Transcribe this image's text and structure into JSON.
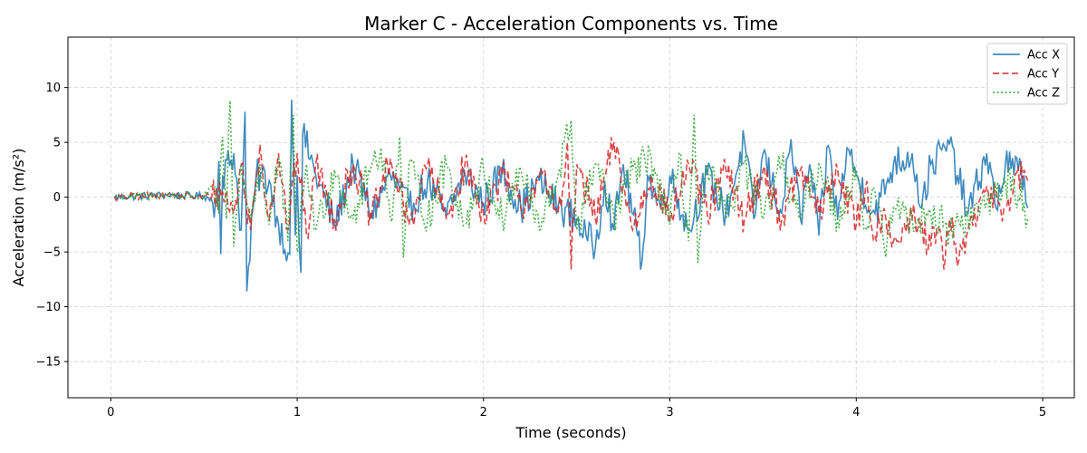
{
  "chart_data": {
    "type": "line",
    "title": "Marker C - Acceleration Components vs. Time",
    "xlabel": "Time (seconds)",
    "ylabel": "Acceleration (m/s²)",
    "xlim": [
      -0.23,
      5.17
    ],
    "ylim": [
      -18.3,
      14.6
    ],
    "xticks": [
      0,
      1,
      2,
      3,
      4,
      5
    ],
    "yticks": [
      -15,
      -10,
      -5,
      0,
      5,
      10
    ],
    "ytick_labels": [
      "−15",
      "−10",
      "−5",
      "0",
      "5",
      "10"
    ],
    "grid": true,
    "legend_position": "top-right",
    "x_start": 0.02,
    "x_end": 4.92,
    "series": [
      {
        "name": "Acc X",
        "color": "#1f77b4",
        "dash": "solid",
        "x": [
          0.02,
          0.3,
          0.5,
          0.57,
          0.58,
          0.59,
          0.6,
          0.66,
          0.7,
          0.72,
          0.73,
          0.78,
          0.85,
          0.9,
          0.96,
          0.97,
          0.98,
          0.99,
          1.0,
          1.01,
          1.02,
          1.03,
          1.1,
          1.2,
          1.3,
          1.4,
          1.5,
          1.6,
          1.7,
          1.8,
          1.9,
          2.0,
          2.1,
          2.2,
          2.3,
          2.4,
          2.5,
          2.55,
          2.6,
          2.65,
          2.7,
          2.75,
          2.85,
          2.88,
          2.95,
          3.0,
          3.1,
          3.2,
          3.3,
          3.4,
          3.45,
          3.5,
          3.6,
          3.65,
          3.7,
          3.75,
          3.8,
          3.85,
          3.9,
          3.95,
          4.0,
          4.1,
          4.2,
          4.3,
          4.35,
          4.4,
          4.5,
          4.6,
          4.7,
          4.75,
          4.8,
          4.9,
          4.92
        ],
        "y": [
          0.0,
          0.2,
          0.1,
          -0.5,
          3.3,
          -5.2,
          2.0,
          4.0,
          -3.0,
          7.8,
          -8.6,
          2.0,
          1.5,
          -2.5,
          -5.2,
          8.9,
          3.0,
          -3.5,
          2.0,
          -4.0,
          -6.9,
          5.8,
          2.0,
          -2.5,
          3.0,
          -1.5,
          2.0,
          -1.0,
          1.5,
          -1.8,
          2.2,
          -0.5,
          2.5,
          -1.0,
          1.5,
          -0.8,
          -2.0,
          -3.5,
          -4.6,
          1.5,
          -3.0,
          3.0,
          -5.9,
          2.0,
          -1.0,
          2.0,
          -3.0,
          2.0,
          -1.5,
          5.2,
          -2.0,
          4.0,
          -1.5,
          5.3,
          -2.0,
          3.0,
          -3.5,
          4.7,
          -2.0,
          4.5,
          2.0,
          -1.5,
          3.0,
          4.0,
          -1.0,
          3.0,
          4.8,
          -1.5,
          4.0,
          -1.0,
          3.0,
          2.0,
          -1.0
        ]
      },
      {
        "name": "Acc Y",
        "color": "#d62728",
        "dash": "dashed",
        "x": [
          0.02,
          0.3,
          0.5,
          0.6,
          0.66,
          0.7,
          0.75,
          0.8,
          0.85,
          0.9,
          0.95,
          1.0,
          1.05,
          1.1,
          1.2,
          1.3,
          1.4,
          1.5,
          1.6,
          1.7,
          1.8,
          1.9,
          2.0,
          2.1,
          2.2,
          2.3,
          2.4,
          2.45,
          2.47,
          2.5,
          2.6,
          2.7,
          2.8,
          2.9,
          3.0,
          3.1,
          3.2,
          3.3,
          3.4,
          3.5,
          3.6,
          3.7,
          3.8,
          3.9,
          4.0,
          4.05,
          4.1,
          4.15,
          4.2,
          4.3,
          4.4,
          4.45,
          4.47,
          4.5,
          4.55,
          4.6,
          4.65,
          4.7,
          4.8,
          4.9,
          4.92
        ],
        "y": [
          0.0,
          0.2,
          0.0,
          0.5,
          -1.5,
          3.0,
          -3.0,
          4.8,
          -2.0,
          4.0,
          -3.0,
          4.0,
          -3.5,
          3.0,
          -2.0,
          3.0,
          -2.0,
          3.5,
          -2.5,
          3.0,
          -2.0,
          3.0,
          -1.5,
          2.0,
          -1.0,
          2.0,
          -1.5,
          5.0,
          -6.6,
          3.0,
          -2.0,
          5.0,
          -3.0,
          2.0,
          -2.0,
          3.0,
          -1.5,
          2.5,
          -2.0,
          2.5,
          -2.0,
          2.5,
          -1.5,
          2.5,
          -2.5,
          1.0,
          -3.5,
          -1.0,
          -4.0,
          -2.0,
          -4.5,
          -3.0,
          -6.6,
          -2.0,
          -5.8,
          -3.0,
          -2.0,
          1.0,
          -1.0,
          2.5,
          1.5
        ]
      },
      {
        "name": "Acc Z",
        "color": "#2ca02c",
        "dash": "dotted",
        "x": [
          0.02,
          0.3,
          0.5,
          0.55,
          0.58,
          0.6,
          0.62,
          0.64,
          0.66,
          0.7,
          0.75,
          0.8,
          0.85,
          0.9,
          0.95,
          0.98,
          1.0,
          1.05,
          1.1,
          1.2,
          1.3,
          1.4,
          1.45,
          1.5,
          1.55,
          1.57,
          1.6,
          1.7,
          1.8,
          1.9,
          2.0,
          2.1,
          2.2,
          2.3,
          2.4,
          2.47,
          2.5,
          2.6,
          2.7,
          2.8,
          2.9,
          3.0,
          3.05,
          3.1,
          3.13,
          3.15,
          3.2,
          3.3,
          3.4,
          3.5,
          3.6,
          3.7,
          3.8,
          3.9,
          4.0,
          4.05,
          4.1,
          4.15,
          4.2,
          4.3,
          4.4,
          4.5,
          4.6,
          4.7,
          4.8,
          4.9,
          4.92
        ],
        "y": [
          0.0,
          0.2,
          0.0,
          1.0,
          -1.5,
          5.5,
          -2.0,
          8.8,
          -4.5,
          3.0,
          -2.0,
          3.0,
          -2.5,
          3.5,
          -4.0,
          7.5,
          -5.0,
          3.0,
          -3.0,
          2.5,
          -2.0,
          3.0,
          4.5,
          -2.0,
          5.5,
          -5.5,
          3.0,
          -2.0,
          3.0,
          -2.5,
          2.5,
          -2.0,
          2.5,
          -3.0,
          2.0,
          7.0,
          -3.0,
          3.0,
          -2.0,
          2.5,
          3.5,
          -2.5,
          4.0,
          -4.0,
          7.5,
          -6.0,
          3.0,
          -2.0,
          3.0,
          -2.0,
          3.0,
          -2.0,
          3.0,
          -2.0,
          2.5,
          -3.0,
          0.5,
          -4.5,
          -1.0,
          -2.0,
          -1.5,
          -3.0,
          -2.0,
          -0.5,
          1.5,
          -0.5,
          -2.0
        ]
      }
    ]
  }
}
